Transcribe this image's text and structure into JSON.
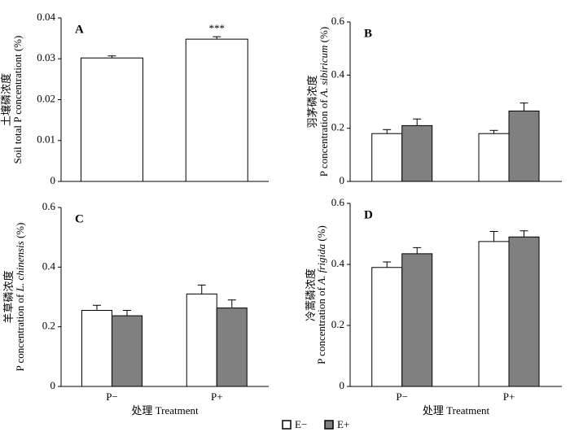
{
  "chart_data": [
    {
      "type": "bar",
      "panel_label": "A",
      "ylabel": [
        "土壤磷浓度",
        "Soil total P concentrationt (%)"
      ],
      "categories": [
        null,
        null
      ],
      "values": [
        0.0302,
        0.0348
      ],
      "errors": [
        0.0005,
        0.0006
      ],
      "color": "#ffffff",
      "annotation": "***",
      "ylim": [
        0,
        0.04
      ],
      "yticks": [
        0,
        0.01,
        0.02,
        0.03,
        0.04
      ]
    },
    {
      "type": "bar",
      "panel_label": "B",
      "ylabel": [
        "羽茅磷浓度",
        "P concentration of ",
        "A. sibiricum",
        " (%)"
      ],
      "categories": [
        null,
        null
      ],
      "series": [
        {
          "name": "E−",
          "color": "#ffffff",
          "values": [
            0.18,
            0.18
          ],
          "errors": [
            0.015,
            0.012
          ]
        },
        {
          "name": "E+",
          "color": "#808080",
          "values": [
            0.21,
            0.265
          ],
          "errors": [
            0.025,
            0.03
          ]
        }
      ],
      "ylim": [
        0,
        0.6
      ],
      "yticks": [
        0,
        0.2,
        0.4,
        0.6
      ]
    },
    {
      "type": "bar",
      "panel_label": "C",
      "ylabel": [
        "羊草磷浓度",
        "P concentration of ",
        "L. chinensis",
        " (%)"
      ],
      "categories": [
        "P−",
        "P+"
      ],
      "xlabel": "处理 Treatment",
      "series": [
        {
          "name": "E−",
          "color": "#ffffff",
          "values": [
            0.255,
            0.31
          ],
          "errors": [
            0.017,
            0.03
          ]
        },
        {
          "name": "E+",
          "color": "#808080",
          "values": [
            0.237,
            0.263
          ],
          "errors": [
            0.018,
            0.027
          ]
        }
      ],
      "ylim": [
        0,
        0.6
      ],
      "yticks": [
        0,
        0.2,
        0.4,
        0.6
      ]
    },
    {
      "type": "bar",
      "panel_label": "D",
      "ylabel": [
        "冷蒿磷浓度",
        "P concentration of ",
        "A. frigida",
        " (%)"
      ],
      "categories": [
        "P−",
        "P+"
      ],
      "xlabel": "处理 Treatment",
      "series": [
        {
          "name": "E−",
          "color": "#ffffff",
          "values": [
            0.39,
            0.475
          ],
          "errors": [
            0.018,
            0.033
          ]
        },
        {
          "name": "E+",
          "color": "#808080",
          "values": [
            0.435,
            0.49
          ],
          "errors": [
            0.02,
            0.02
          ]
        }
      ],
      "ylim": [
        0,
        0.6
      ],
      "yticks": [
        0,
        0.2,
        0.4,
        0.6
      ]
    }
  ]
}
